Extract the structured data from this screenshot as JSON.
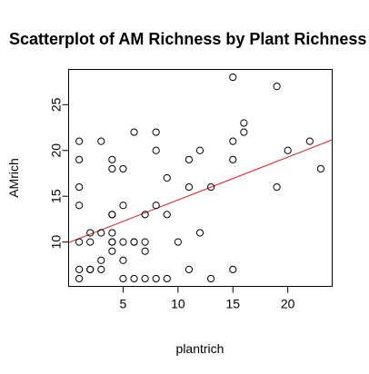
{
  "chart_data": {
    "type": "scatter",
    "title": "Scatterplot of AM Richness by Plant Richness",
    "xlabel": "plantrich",
    "ylabel": "AMrich",
    "xlim": [
      0.08,
      24
    ],
    "ylim": [
      5.2,
      28.8
    ],
    "x_ticks": [
      5,
      10,
      15,
      20
    ],
    "y_ticks": [
      10,
      15,
      20,
      25
    ],
    "grid": false,
    "legend": "none",
    "colors": {
      "points": "#000000",
      "fit_line": "#e41a1c",
      "axes": "#000000"
    },
    "points": [
      {
        "x": 1,
        "y": 21
      },
      {
        "x": 1,
        "y": 19
      },
      {
        "x": 1,
        "y": 16
      },
      {
        "x": 1,
        "y": 14
      },
      {
        "x": 1,
        "y": 10
      },
      {
        "x": 1,
        "y": 7
      },
      {
        "x": 1,
        "y": 6
      },
      {
        "x": 2,
        "y": 11
      },
      {
        "x": 2,
        "y": 10
      },
      {
        "x": 2,
        "y": 7
      },
      {
        "x": 2,
        "y": 7
      },
      {
        "x": 3,
        "y": 21
      },
      {
        "x": 3,
        "y": 11
      },
      {
        "x": 3,
        "y": 8
      },
      {
        "x": 3,
        "y": 7
      },
      {
        "x": 4,
        "y": 19
      },
      {
        "x": 4,
        "y": 18
      },
      {
        "x": 4,
        "y": 13
      },
      {
        "x": 4,
        "y": 13
      },
      {
        "x": 4,
        "y": 11
      },
      {
        "x": 4,
        "y": 10
      },
      {
        "x": 4,
        "y": 10
      },
      {
        "x": 4,
        "y": 9
      },
      {
        "x": 5,
        "y": 18
      },
      {
        "x": 5,
        "y": 14
      },
      {
        "x": 5,
        "y": 10
      },
      {
        "x": 5,
        "y": 8
      },
      {
        "x": 5,
        "y": 6
      },
      {
        "x": 6,
        "y": 22
      },
      {
        "x": 6,
        "y": 10
      },
      {
        "x": 6,
        "y": 10
      },
      {
        "x": 6,
        "y": 6
      },
      {
        "x": 7,
        "y": 13
      },
      {
        "x": 7,
        "y": 10
      },
      {
        "x": 7,
        "y": 9
      },
      {
        "x": 7,
        "y": 6
      },
      {
        "x": 8,
        "y": 22
      },
      {
        "x": 8,
        "y": 20
      },
      {
        "x": 8,
        "y": 14
      },
      {
        "x": 8,
        "y": 6
      },
      {
        "x": 9,
        "y": 17
      },
      {
        "x": 9,
        "y": 13
      },
      {
        "x": 9,
        "y": 6
      },
      {
        "x": 10,
        "y": 10
      },
      {
        "x": 11,
        "y": 19
      },
      {
        "x": 11,
        "y": 16
      },
      {
        "x": 11,
        "y": 7
      },
      {
        "x": 12,
        "y": 20
      },
      {
        "x": 12,
        "y": 11
      },
      {
        "x": 13,
        "y": 16
      },
      {
        "x": 13,
        "y": 6
      },
      {
        "x": 15,
        "y": 28
      },
      {
        "x": 15,
        "y": 21
      },
      {
        "x": 15,
        "y": 19
      },
      {
        "x": 15,
        "y": 7
      },
      {
        "x": 16,
        "y": 23
      },
      {
        "x": 16,
        "y": 22
      },
      {
        "x": 19,
        "y": 27
      },
      {
        "x": 19,
        "y": 16
      },
      {
        "x": 20,
        "y": 20
      },
      {
        "x": 22,
        "y": 21
      },
      {
        "x": 23,
        "y": 18
      }
    ],
    "fit_line": {
      "intercept": 9.92,
      "slope": 0.4675
    }
  }
}
